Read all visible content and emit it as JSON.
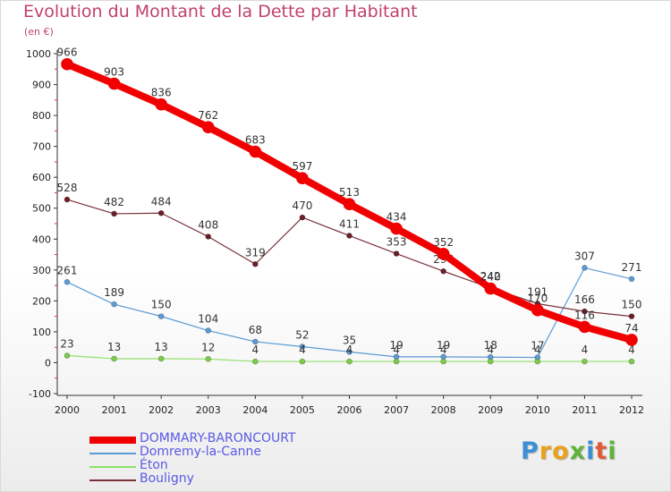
{
  "title": "Evolution du Montant de la Dette par Habitant",
  "unit_label": "(en €)",
  "logo": {
    "letters": [
      {
        "ch": "P",
        "color": "#3c8fd6"
      },
      {
        "ch": "r",
        "color": "#e8a21e"
      },
      {
        "ch": "o",
        "color": "#e8a21e"
      },
      {
        "ch": "x",
        "color": "#5db33a"
      },
      {
        "ch": "i",
        "color": "#3c8fd6"
      },
      {
        "ch": "t",
        "color": "#e05a3a"
      },
      {
        "ch": "i",
        "color": "#5db33a"
      }
    ]
  },
  "chart_data": {
    "type": "line",
    "title": "Evolution du Montant de la Dette par Habitant",
    "ylabel": "(en €)",
    "xlabel": "",
    "ylim": [
      -100,
      1000
    ],
    "yticks": [
      "-100",
      "0",
      "100",
      "200",
      "300",
      "400",
      "500",
      "600",
      "700",
      "800",
      "900",
      "1000"
    ],
    "ytick_values": [
      -100,
      0,
      100,
      200,
      300,
      400,
      500,
      600,
      700,
      800,
      900,
      1000
    ],
    "categories": [
      "2000",
      "2001",
      "2002",
      "2003",
      "2004",
      "2005",
      "2006",
      "2007",
      "2008",
      "2009",
      "2010",
      "2011",
      "2012"
    ],
    "grid": false,
    "legend_position": "bottom-left",
    "series": [
      {
        "name": "Domremy-la-Canne",
        "color": "#5b9bd5",
        "marker": "#5b9bd5",
        "width": 1.2,
        "values": [
          261,
          189,
          150,
          104,
          68,
          52,
          35,
          19,
          19,
          18,
          17,
          307,
          271
        ],
        "labels": [
          "261",
          "189",
          "150",
          "104",
          "68",
          "52",
          "35",
          "19",
          "19",
          "18",
          "17",
          "307",
          "271"
        ]
      },
      {
        "name": "Éton",
        "color": "#8ee06a",
        "marker": "#7ccc4a",
        "width": 1.2,
        "values": [
          23,
          13,
          13,
          12,
          4,
          4,
          4,
          4,
          4,
          4,
          4,
          4,
          4
        ],
        "labels": [
          "23",
          "13",
          "13",
          "12",
          "4",
          "4",
          "4",
          "4",
          "4",
          "4",
          "4",
          "4",
          "4"
        ]
      },
      {
        "name": "Bouligny",
        "color": "#7a3038",
        "marker": "#6a1e28",
        "width": 1.2,
        "values": [
          528,
          482,
          484,
          408,
          319,
          470,
          411,
          353,
          296,
          242,
          191,
          166,
          150
        ],
        "labels": [
          "528",
          "482",
          "484",
          "408",
          "319",
          "470",
          "411",
          "353",
          "296",
          "242",
          "191",
          "166",
          "150"
        ]
      },
      {
        "name": "DOMMARY-BARONCOURT",
        "color": "#f00000",
        "marker": "#f00000",
        "width": 8,
        "values": [
          966,
          903,
          836,
          762,
          683,
          597,
          513,
          434,
          352,
          240,
          170,
          116,
          74
        ],
        "labels": [
          "966",
          "903",
          "836",
          "762",
          "683",
          "597",
          "513",
          "434",
          "352",
          "240",
          "170",
          "116",
          "74"
        ]
      }
    ],
    "legend_order": [
      "DOMMARY-BARONCOURT",
      "Domremy-la-Canne",
      "Éton",
      "Bouligny"
    ]
  }
}
